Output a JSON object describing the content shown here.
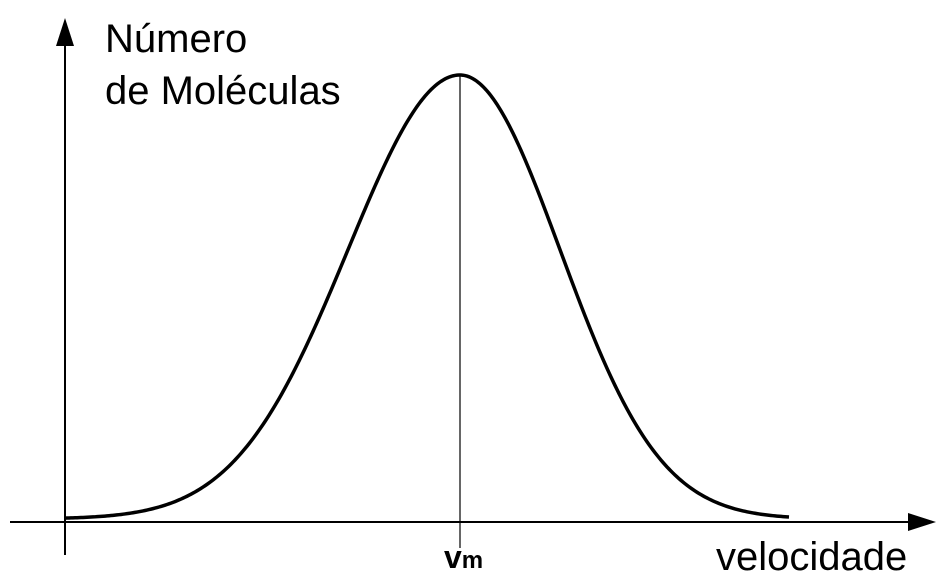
{
  "y_axis_label": {
    "line1": "Número",
    "line2": "de Moléculas"
  },
  "x_axis_label": "velocidade",
  "peak_label": {
    "main": "v",
    "subscript": "m"
  }
}
